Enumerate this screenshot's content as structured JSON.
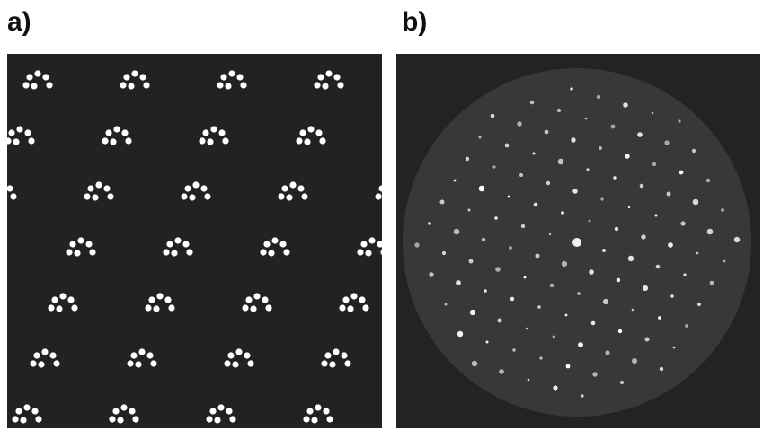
{
  "panel_a": {
    "label": "a)"
  },
  "panel_b": {
    "label": "b)"
  },
  "colors": {
    "background": "#ffffff",
    "panel_a_bg": "#222222",
    "panel_b_bg": "#232323",
    "disk": "#383838",
    "spot": "#ffffff"
  }
}
